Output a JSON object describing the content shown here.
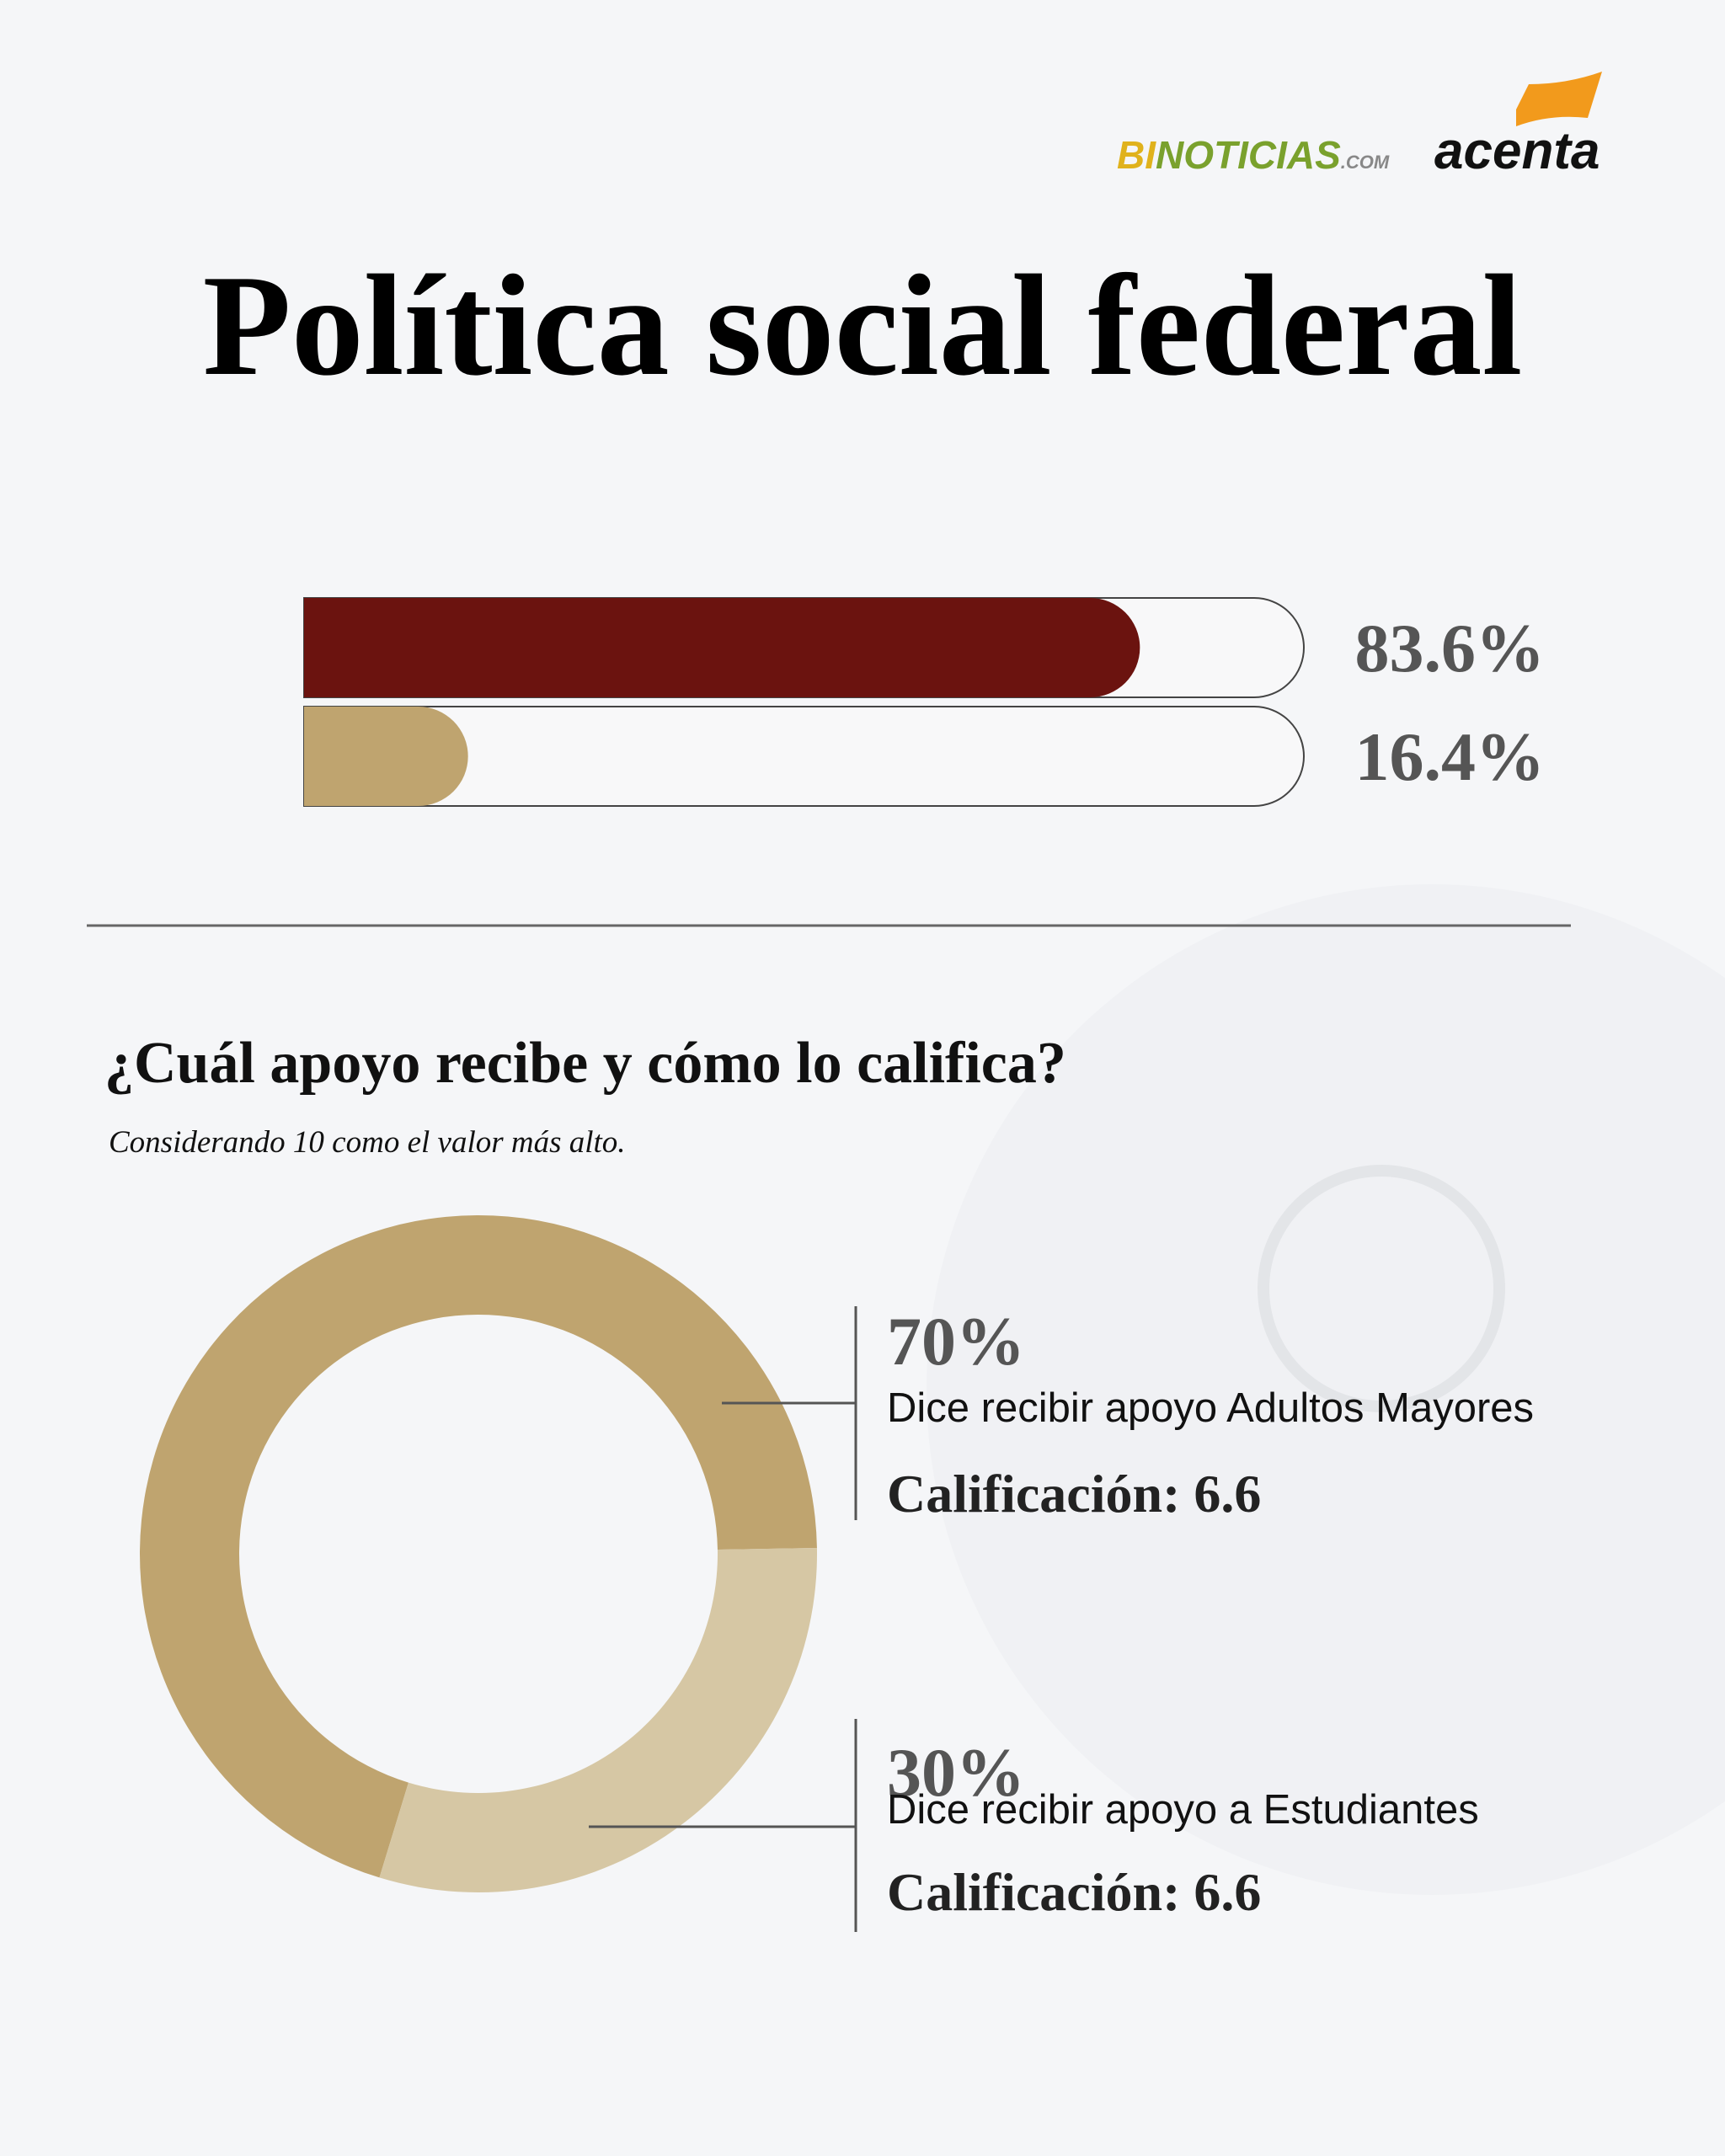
{
  "header": {
    "brand_bi": "BI",
    "brand_noticias": "NOTICIAS",
    "brand_com": ".COM",
    "brand_acenta": "acenta"
  },
  "chart_data": [
    {
      "type": "progress-bar",
      "title": "Política social federal",
      "values": [
        83.6,
        16.4
      ],
      "value_labels": [
        "83.6%",
        "16.4%"
      ],
      "colors": [
        "#6b130f",
        "#bfa46f"
      ],
      "xlim": [
        0,
        100
      ]
    },
    {
      "type": "donut",
      "title": "¿Cuál apoyo recibe y cómo lo califica?",
      "subtitle": "Considerando 10 como el valor más alto.",
      "labels": [
        "Dice recibir apoyo Adultos Mayores",
        "Dice recibir apoyo a Estudiantes"
      ],
      "values": [
        70,
        30
      ],
      "value_labels": [
        "70%",
        "30%"
      ],
      "rating_labels": [
        "Calificación: 6.6",
        "Calificación: 6.6"
      ],
      "colors": [
        "#bfa46f",
        "#d6c7a4"
      ]
    }
  ]
}
